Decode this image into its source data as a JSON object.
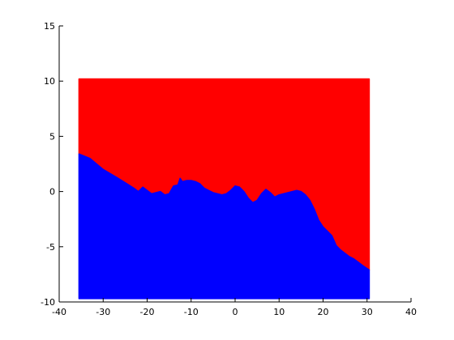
{
  "chart_data": {
    "type": "area",
    "title": "",
    "xlabel": "",
    "ylabel": "",
    "xlim": [
      -40,
      40
    ],
    "ylim": [
      -10,
      15
    ],
    "x_ticks": [
      -40,
      -30,
      -20,
      -10,
      0,
      10,
      20,
      30,
      40
    ],
    "y_ticks": [
      -10,
      -5,
      0,
      5,
      10,
      15
    ],
    "x_tick_labels": [
      "-40",
      "-30",
      "-20",
      "-10",
      "0",
      "10",
      "20",
      "30",
      "40"
    ],
    "y_tick_labels": [
      "-10",
      "-5",
      "0",
      "5",
      "10",
      "15"
    ],
    "grid": false,
    "legend": "none",
    "region_bounds": {
      "x": [
        -35.5,
        30.5
      ],
      "y": [
        -9.7,
        10.2
      ]
    },
    "series": [
      {
        "color": "#ff0000",
        "role": "upper region (above boundary)"
      },
      {
        "color": "#0000ff",
        "role": "lower region (below boundary)"
      }
    ],
    "boundary": {
      "x": [
        -35.5,
        -33,
        -30,
        -27,
        -25,
        -23,
        -22,
        -21,
        -20,
        -19,
        -18,
        -17,
        -16,
        -15,
        -14,
        -13,
        -12.5,
        -12,
        -11,
        -10,
        -9,
        -8,
        -7,
        -6,
        -5,
        -4,
        -3,
        -2,
        -1,
        0,
        1,
        2,
        3,
        4,
        5,
        6,
        7,
        8,
        9,
        10,
        11,
        12,
        13,
        14,
        15,
        16,
        17,
        18,
        19,
        20,
        21,
        22,
        23,
        24,
        25,
        26,
        27,
        28,
        29,
        30.5
      ],
      "y": [
        3.4,
        3.0,
        2.0,
        1.3,
        0.8,
        0.3,
        0.0,
        0.4,
        0.1,
        -0.2,
        -0.1,
        0.0,
        -0.3,
        -0.2,
        0.5,
        0.6,
        1.2,
        0.9,
        1.0,
        1.0,
        0.9,
        0.7,
        0.3,
        0.1,
        -0.1,
        -0.2,
        -0.3,
        -0.2,
        0.1,
        0.5,
        0.4,
        0.0,
        -0.6,
        -1.0,
        -0.8,
        -0.2,
        0.2,
        -0.1,
        -0.5,
        -0.3,
        -0.2,
        -0.1,
        0.0,
        0.1,
        0.0,
        -0.3,
        -0.8,
        -1.6,
        -2.6,
        -3.2,
        -3.6,
        -4.0,
        -4.9,
        -5.3,
        -5.6,
        -5.9,
        -6.1,
        -6.4,
        -6.7,
        -7.1
      ]
    }
  }
}
